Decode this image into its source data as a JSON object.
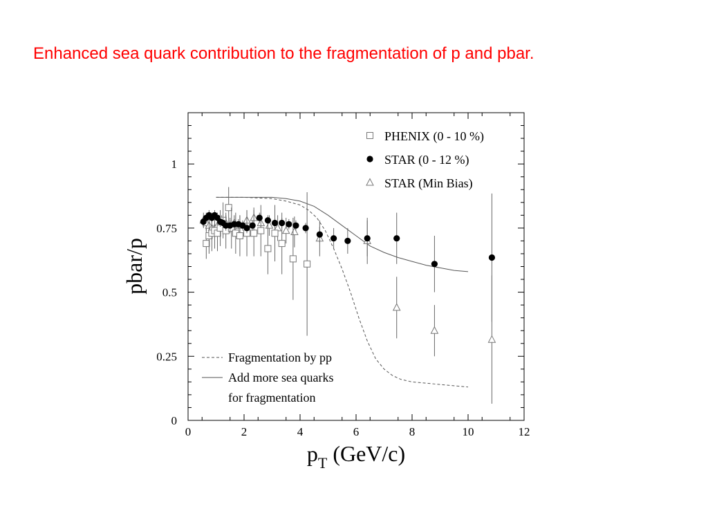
{
  "title": "Enhanced sea quark contribution to the fragmentation of p and pbar.",
  "chart_data": {
    "type": "scatter",
    "xlabel_main": "p",
    "xlabel_sub": "T",
    "xlabel_unit": " (GeV/c)",
    "ylabel": "pbar/p",
    "xlim": [
      0,
      12
    ],
    "ylim": [
      0,
      1.2
    ],
    "xticks": [
      0,
      2,
      4,
      6,
      8,
      10,
      12
    ],
    "yticks": [
      0,
      0.25,
      0.5,
      0.75,
      1
    ],
    "ytick_labels": [
      "0",
      "0.25",
      "0.5",
      "0.75",
      "1"
    ],
    "grid": false,
    "legend_top": {
      "position": "top-right",
      "entries": [
        {
          "label": "PHENIX (0 - 10 %)",
          "marker": "open-square"
        },
        {
          "label": "STAR (0 - 12 %)",
          "marker": "filled-circle"
        },
        {
          "label": "STAR (Min Bias)",
          "marker": "open-triangle"
        }
      ]
    },
    "legend_bottom": {
      "position": "bottom-left",
      "entries": [
        {
          "label": "Fragmentation by pp",
          "style": "dashed"
        },
        {
          "label": "Add more sea quarks",
          "style": "solid"
        },
        {
          "label": "for fragmentation",
          "style": "none"
        }
      ]
    },
    "series": [
      {
        "name": "PHENIX (0 - 10 %)",
        "marker": "open-square",
        "x": [
          0.65,
          0.75,
          0.85,
          0.95,
          1.05,
          1.15,
          1.25,
          1.35,
          1.45,
          1.55,
          1.7,
          1.85,
          2.1,
          2.35,
          2.6,
          2.85,
          3.1,
          3.35,
          3.75,
          4.25
        ],
        "y": [
          0.69,
          0.72,
          0.73,
          0.74,
          0.73,
          0.75,
          0.78,
          0.74,
          0.83,
          0.75,
          0.73,
          0.72,
          0.73,
          0.73,
          0.74,
          0.67,
          0.73,
          0.69,
          0.63,
          0.61
        ],
        "err": [
          0.06,
          0.07,
          0.07,
          0.07,
          0.07,
          0.07,
          0.07,
          0.07,
          0.08,
          0.08,
          0.08,
          0.08,
          0.09,
          0.09,
          0.1,
          0.1,
          0.11,
          0.12,
          0.16,
          0.28
        ]
      },
      {
        "name": "STAR (0 - 12 %)",
        "marker": "filled-circle",
        "x": [
          0.55,
          0.65,
          0.75,
          0.85,
          0.95,
          1.05,
          1.15,
          1.25,
          1.35,
          1.5,
          1.65,
          1.8,
          1.95,
          2.1,
          2.3,
          2.55,
          2.85,
          3.1,
          3.35,
          3.6,
          3.85,
          4.2,
          4.7,
          5.2,
          5.7,
          6.4,
          7.45,
          8.8,
          10.85
        ],
        "y": [
          0.775,
          0.79,
          0.8,
          0.79,
          0.8,
          0.79,
          0.775,
          0.77,
          0.76,
          0.76,
          0.765,
          0.765,
          0.76,
          0.75,
          0.76,
          0.79,
          0.78,
          0.77,
          0.77,
          0.765,
          0.76,
          0.75,
          0.725,
          0.71,
          0.7,
          0.71,
          0.71,
          0.61,
          0.635
        ],
        "err": [
          0.02,
          0.02,
          0.02,
          0.02,
          0.02,
          0.02,
          0.02,
          0.02,
          0.02,
          0.02,
          0.02,
          0.02,
          0.02,
          0.02,
          0.02,
          0.02,
          0.02,
          0.02,
          0.02,
          0.02,
          0.02,
          0.02,
          0.03,
          0.04,
          0.05,
          0.07,
          0.1,
          0.11,
          0.25
        ]
      },
      {
        "name": "STAR (Min Bias)",
        "marker": "open-triangle",
        "x": [
          0.55,
          0.65,
          0.75,
          0.85,
          0.95,
          1.05,
          1.2,
          1.35,
          1.5,
          1.65,
          1.85,
          2.1,
          2.35,
          2.6,
          2.9,
          3.2,
          3.5,
          3.8,
          4.7,
          6.4,
          7.45,
          8.8,
          10.85
        ],
        "y": [
          0.78,
          0.77,
          0.76,
          0.75,
          0.75,
          0.76,
          0.77,
          0.77,
          0.76,
          0.77,
          0.76,
          0.78,
          0.79,
          0.77,
          0.76,
          0.75,
          0.74,
          0.735,
          0.71,
          0.7,
          0.44,
          0.35,
          0.315
        ],
        "err": [
          0.03,
          0.03,
          0.03,
          0.03,
          0.03,
          0.03,
          0.03,
          0.03,
          0.03,
          0.03,
          0.04,
          0.04,
          0.04,
          0.04,
          0.04,
          0.05,
          0.05,
          0.06,
          0.07,
          0.09,
          0.12,
          0.1,
          0.25
        ]
      }
    ],
    "curves": [
      {
        "name": "Fragmentation by pp",
        "style": "dashed",
        "x": [
          1,
          2,
          3,
          3.5,
          4,
          4.3,
          4.6,
          4.9,
          5.2,
          5.5,
          5.8,
          6.1,
          6.4,
          6.7,
          7.0,
          7.3,
          7.6,
          8,
          8.5,
          9,
          10
        ],
        "y": [
          0.87,
          0.87,
          0.865,
          0.855,
          0.84,
          0.82,
          0.79,
          0.74,
          0.67,
          0.59,
          0.5,
          0.4,
          0.31,
          0.24,
          0.2,
          0.175,
          0.16,
          0.15,
          0.145,
          0.14,
          0.13
        ]
      },
      {
        "name": "Add more sea quarks",
        "style": "solid",
        "x": [
          1,
          2,
          3,
          3.5,
          4,
          4.5,
          5,
          5.5,
          6,
          6.5,
          7,
          7.5,
          8,
          8.5,
          9,
          9.5,
          10
        ],
        "y": [
          0.87,
          0.87,
          0.87,
          0.865,
          0.855,
          0.835,
          0.8,
          0.76,
          0.72,
          0.68,
          0.655,
          0.635,
          0.62,
          0.605,
          0.595,
          0.585,
          0.58
        ]
      }
    ]
  }
}
